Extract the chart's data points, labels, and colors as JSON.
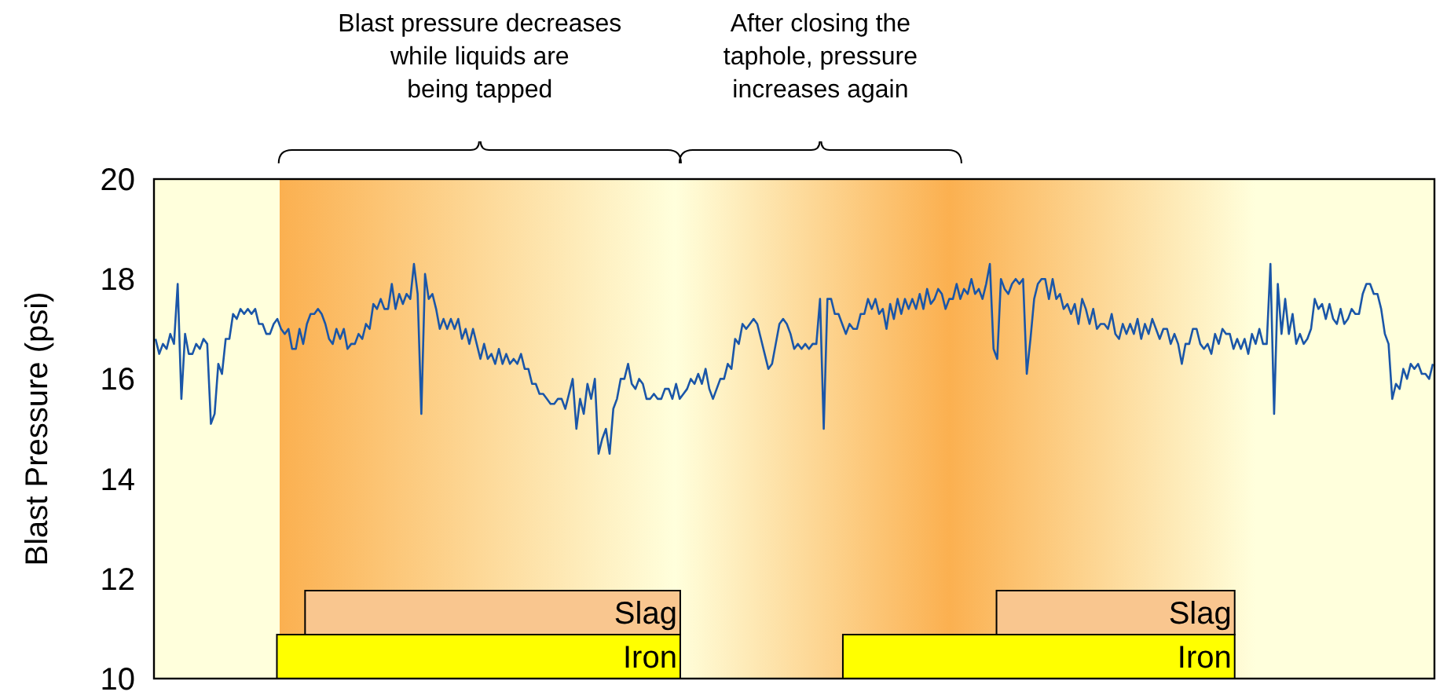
{
  "chart_data": {
    "type": "line",
    "ylabel": "Blast Pressure (psi)",
    "annotations": [
      "Blast pressure decreases\nwhile liquids are\nbeing tapped",
      "After closing the\ntaphole, pressure\nincreases again",
      "Slag",
      "Iron",
      "Slag",
      "Iron"
    ],
    "ylim": [
      10,
      20
    ],
    "yticks": [
      10,
      12,
      14,
      16,
      18,
      20
    ],
    "categories": [
      null,
      null,
      null,
      null,
      null,
      null,
      null,
      null,
      null,
      null,
      null,
      null,
      null,
      null,
      null,
      null,
      null,
      null,
      null,
      null,
      null,
      null,
      null,
      null,
      null,
      null,
      null,
      null,
      null,
      null,
      null,
      null,
      null,
      null,
      null,
      null,
      null,
      null,
      null,
      null,
      null,
      null,
      null,
      null,
      null,
      null,
      null,
      null,
      null,
      null,
      null,
      null,
      null,
      null,
      null,
      null,
      null,
      null,
      null,
      null,
      null,
      null,
      null,
      null,
      null,
      null,
      null,
      null,
      null,
      null,
      null,
      null,
      null,
      null,
      null,
      null,
      null,
      null,
      null,
      null,
      null,
      null,
      null,
      null,
      null,
      null,
      null,
      null,
      null,
      null,
      null,
      null,
      null,
      null,
      null,
      null,
      null,
      null,
      null,
      null,
      null,
      null,
      null,
      null,
      null,
      null,
      null,
      null,
      null,
      null,
      null,
      null,
      null,
      null,
      null,
      null,
      null,
      null,
      null,
      null,
      null,
      null,
      null,
      null,
      null,
      null,
      null,
      null,
      null,
      null,
      null,
      null,
      null,
      null,
      null,
      null,
      null,
      null,
      null,
      null,
      null,
      null,
      null,
      null,
      null,
      null,
      null,
      null,
      null,
      null,
      null,
      null,
      null,
      null,
      null,
      null,
      null,
      null,
      null,
      null,
      null,
      null,
      null,
      null,
      null,
      null,
      null,
      null,
      null,
      null,
      null,
      null,
      null,
      null,
      null,
      null,
      null,
      null,
      null,
      null,
      null,
      null,
      null,
      null,
      null,
      null,
      null,
      null,
      null,
      null,
      null,
      null,
      null,
      null,
      null,
      null,
      null,
      null,
      null,
      null,
      null,
      null,
      null,
      null,
      null,
      null,
      null,
      null,
      null,
      null,
      null,
      null,
      null,
      null,
      null,
      null,
      null,
      null,
      null,
      null,
      null,
      null,
      null,
      null,
      null,
      null,
      null,
      null,
      null,
      null,
      null,
      null,
      null,
      null,
      null,
      null,
      null,
      null,
      null,
      null,
      null,
      null,
      null,
      null,
      null,
      null,
      null,
      null,
      null,
      null,
      null,
      null,
      null,
      null,
      null,
      null,
      null,
      null,
      null,
      null,
      null,
      null,
      null,
      null,
      null,
      null,
      null,
      null,
      null,
      null,
      null,
      null,
      null,
      null,
      null,
      null,
      null,
      null,
      null,
      null,
      null,
      null,
      null,
      null,
      null,
      null,
      null,
      null,
      null,
      null,
      null,
      null,
      null,
      null,
      null,
      null,
      null,
      null,
      null,
      null,
      null,
      null,
      null,
      null,
      null,
      null,
      null,
      null,
      null,
      null,
      null,
      null,
      null,
      null,
      null,
      null,
      null,
      null,
      null,
      null,
      null,
      null,
      null,
      null,
      null,
      null,
      null,
      null,
      null,
      null,
      null,
      null,
      null,
      null,
      null,
      null,
      null,
      null,
      null,
      null,
      null,
      null,
      null,
      null,
      null,
      null,
      null
    ],
    "series": [
      {
        "color": "#1a56a8",
        "values": [
          16.8,
          16.5,
          16.7,
          16.6,
          16.9,
          16.7,
          17.9,
          15.6,
          16.9,
          16.5,
          16.5,
          16.7,
          16.6,
          16.8,
          16.7,
          15.1,
          15.3,
          16.3,
          16.1,
          16.8,
          16.8,
          17.3,
          17.2,
          17.4,
          17.3,
          17.4,
          17.3,
          17.4,
          17.1,
          17.1,
          16.9,
          16.9,
          17.1,
          17.2,
          17.0,
          16.9,
          17.0,
          16.6,
          16.6,
          17.0,
          16.7,
          17.1,
          17.3,
          17.3,
          17.4,
          17.3,
          17.1,
          16.8,
          16.7,
          17.0,
          16.8,
          17.0,
          16.6,
          16.7,
          16.7,
          16.9,
          16.8,
          17.1,
          17.0,
          17.5,
          17.4,
          17.6,
          17.4,
          17.4,
          17.9,
          17.4,
          17.7,
          17.5,
          17.7,
          17.6,
          18.3,
          17.7,
          15.3,
          18.1,
          17.6,
          17.7,
          17.4,
          17.0,
          17.2,
          17.0,
          17.2,
          17.0,
          17.2,
          16.8,
          17.0,
          16.7,
          17.0,
          16.7,
          16.4,
          16.7,
          16.4,
          16.5,
          16.3,
          16.6,
          16.3,
          16.5,
          16.3,
          16.4,
          16.3,
          16.5,
          16.2,
          16.2,
          15.9,
          15.9,
          15.7,
          15.7,
          15.6,
          15.5,
          15.5,
          15.6,
          15.6,
          15.4,
          15.7,
          16.0,
          15.0,
          15.6,
          15.3,
          15.9,
          15.6,
          16.0,
          14.5,
          14.8,
          15.0,
          14.5,
          15.4,
          15.6,
          16.0,
          16.0,
          16.3,
          15.9,
          15.8,
          16.0,
          15.9,
          15.6,
          15.6,
          15.7,
          15.6,
          15.6,
          15.8,
          15.8,
          15.6,
          15.9,
          15.6,
          15.7,
          15.8,
          16.0,
          15.9,
          16.1,
          15.9,
          16.2,
          15.8,
          15.6,
          15.8,
          16.0,
          16.0,
          16.3,
          16.2,
          16.8,
          16.7,
          17.1,
          17.0,
          17.1,
          17.2,
          17.1,
          16.8,
          16.5,
          16.2,
          16.3,
          16.7,
          17.1,
          17.2,
          17.1,
          16.9,
          16.6,
          16.7,
          16.6,
          16.7,
          16.6,
          16.7,
          16.7,
          17.6,
          15.0,
          17.6,
          17.6,
          17.3,
          17.3,
          17.1,
          16.9,
          17.1,
          17.0,
          17.0,
          17.3,
          17.3,
          17.6,
          17.4,
          17.6,
          17.3,
          17.4,
          17.0,
          17.5,
          17.2,
          17.6,
          17.3,
          17.6,
          17.4,
          17.6,
          17.4,
          17.7,
          17.4,
          17.8,
          17.5,
          17.6,
          17.8,
          17.7,
          17.4,
          17.6,
          17.6,
          17.9,
          17.6,
          17.8,
          17.7,
          18.0,
          17.7,
          17.8,
          17.6,
          17.9,
          18.3,
          16.6,
          16.4,
          18.0,
          17.8,
          17.7,
          17.9,
          18.0,
          17.9,
          18.0,
          16.1,
          16.8,
          17.6,
          17.9,
          18.0,
          18.0,
          17.6,
          18.0,
          17.6,
          17.7,
          17.4,
          17.5,
          17.3,
          17.5,
          17.1,
          17.6,
          17.4,
          17.1,
          17.4,
          17.0,
          17.1,
          17.1,
          17.0,
          17.3,
          16.9,
          16.8,
          17.1,
          16.9,
          17.1,
          16.9,
          17.2,
          16.8,
          17.1,
          16.9,
          17.2,
          17.0,
          16.8,
          17.0,
          17.0,
          16.7,
          16.9,
          16.7,
          16.3,
          16.7,
          16.7,
          17.0,
          17.0,
          16.7,
          16.6,
          16.7,
          16.5,
          16.9,
          16.7,
          17.0,
          16.9,
          16.9,
          16.6,
          16.8,
          16.6,
          16.8,
          16.5,
          16.9,
          16.7,
          17.0,
          16.7,
          16.7,
          18.3,
          15.3,
          17.9,
          16.9,
          17.6,
          16.9,
          17.3,
          16.7,
          16.9,
          16.7,
          16.8,
          17.0,
          17.6,
          17.4,
          17.5,
          17.2,
          17.5,
          17.2,
          17.1,
          17.4,
          17.1,
          17.2,
          17.4,
          17.3,
          17.3,
          17.7,
          17.9,
          17.9,
          17.7,
          17.7,
          17.4,
          16.9,
          16.7,
          15.6,
          15.9,
          15.8,
          16.2,
          16.0,
          16.3,
          16.2,
          16.3,
          16.1,
          16.1,
          16.0,
          16.3
        ]
      }
    ]
  }
}
